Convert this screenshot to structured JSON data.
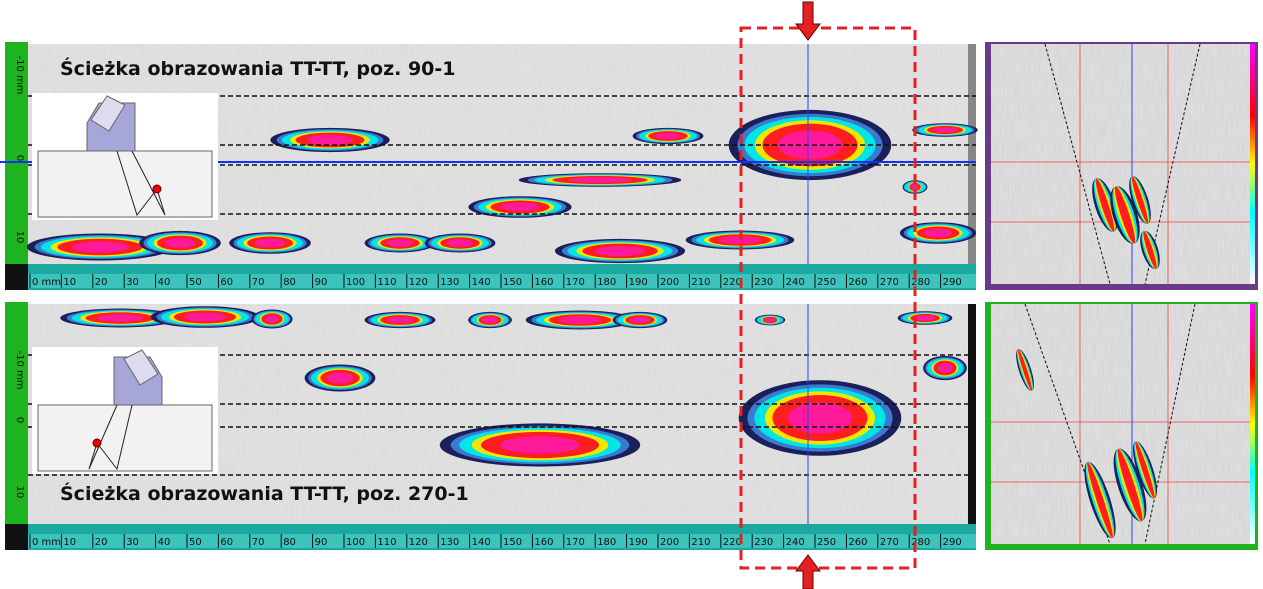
{
  "panels": [
    {
      "title": "Ścieżka obrazowania TT-TT, poz. 90-1",
      "scale_labels": [
        "0 mm",
        "10",
        "20",
        "30",
        "40",
        "50",
        "60",
        "70",
        "80",
        "90",
        "100",
        "110",
        "120",
        "130",
        "140",
        "150",
        "160",
        "170",
        "180",
        "190",
        "200",
        "210",
        "220",
        "230",
        "240",
        "250",
        "260",
        "270",
        "280",
        "290"
      ],
      "depth_labels": [
        "-10 mm",
        "0",
        "10"
      ]
    },
    {
      "title": "Ścieżka obrazowania TT-TT, poz. 270-1",
      "scale_labels": [
        "0 mm",
        "10",
        "20",
        "30",
        "40",
        "50",
        "60",
        "70",
        "80",
        "90",
        "100",
        "110",
        "120",
        "130",
        "140",
        "150",
        "160",
        "170",
        "180",
        "190",
        "200",
        "210",
        "220",
        "230",
        "240",
        "250",
        "260",
        "270",
        "280",
        "290"
      ],
      "depth_labels": [
        "-10 mm",
        "0",
        "10"
      ]
    }
  ]
}
